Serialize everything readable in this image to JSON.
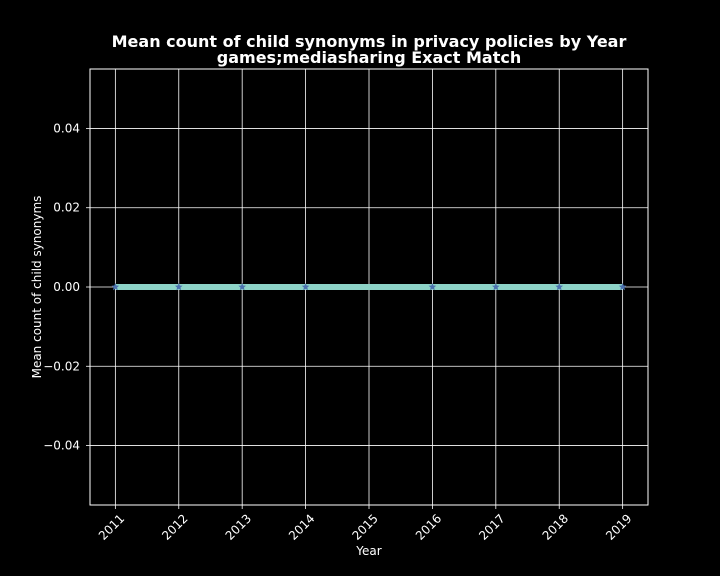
{
  "chart_data": {
    "type": "line",
    "title": "Mean count of child synonyms in privacy policies by Year",
    "subtitle": "games;mediasharing Exact Match",
    "xlabel": "Year",
    "ylabel": "Mean count of child synonyms",
    "x_ticks": [
      "2011",
      "2012",
      "2013",
      "2014",
      "2015",
      "2016",
      "2017",
      "2018",
      "2019"
    ],
    "y_ticks": [
      "−0.04",
      "−0.02",
      "0.00",
      "0.02",
      "0.04"
    ],
    "y_tick_values": [
      -0.04,
      -0.02,
      0,
      0.02,
      0.04
    ],
    "xlim": [
      2010.6,
      2019.4
    ],
    "ylim": [
      -0.055,
      0.055
    ],
    "grid": true,
    "series": [
      {
        "x": [
          2011,
          2012,
          2013,
          2014,
          2016,
          2017,
          2018,
          2019
        ],
        "values": [
          0,
          0,
          0,
          0,
          0,
          0,
          0,
          0
        ],
        "line_color": "#8dd3c7",
        "marker_color": "#4c72b0",
        "marker": "star"
      }
    ],
    "background_color": "#000000",
    "text_color": "#ffffff"
  }
}
